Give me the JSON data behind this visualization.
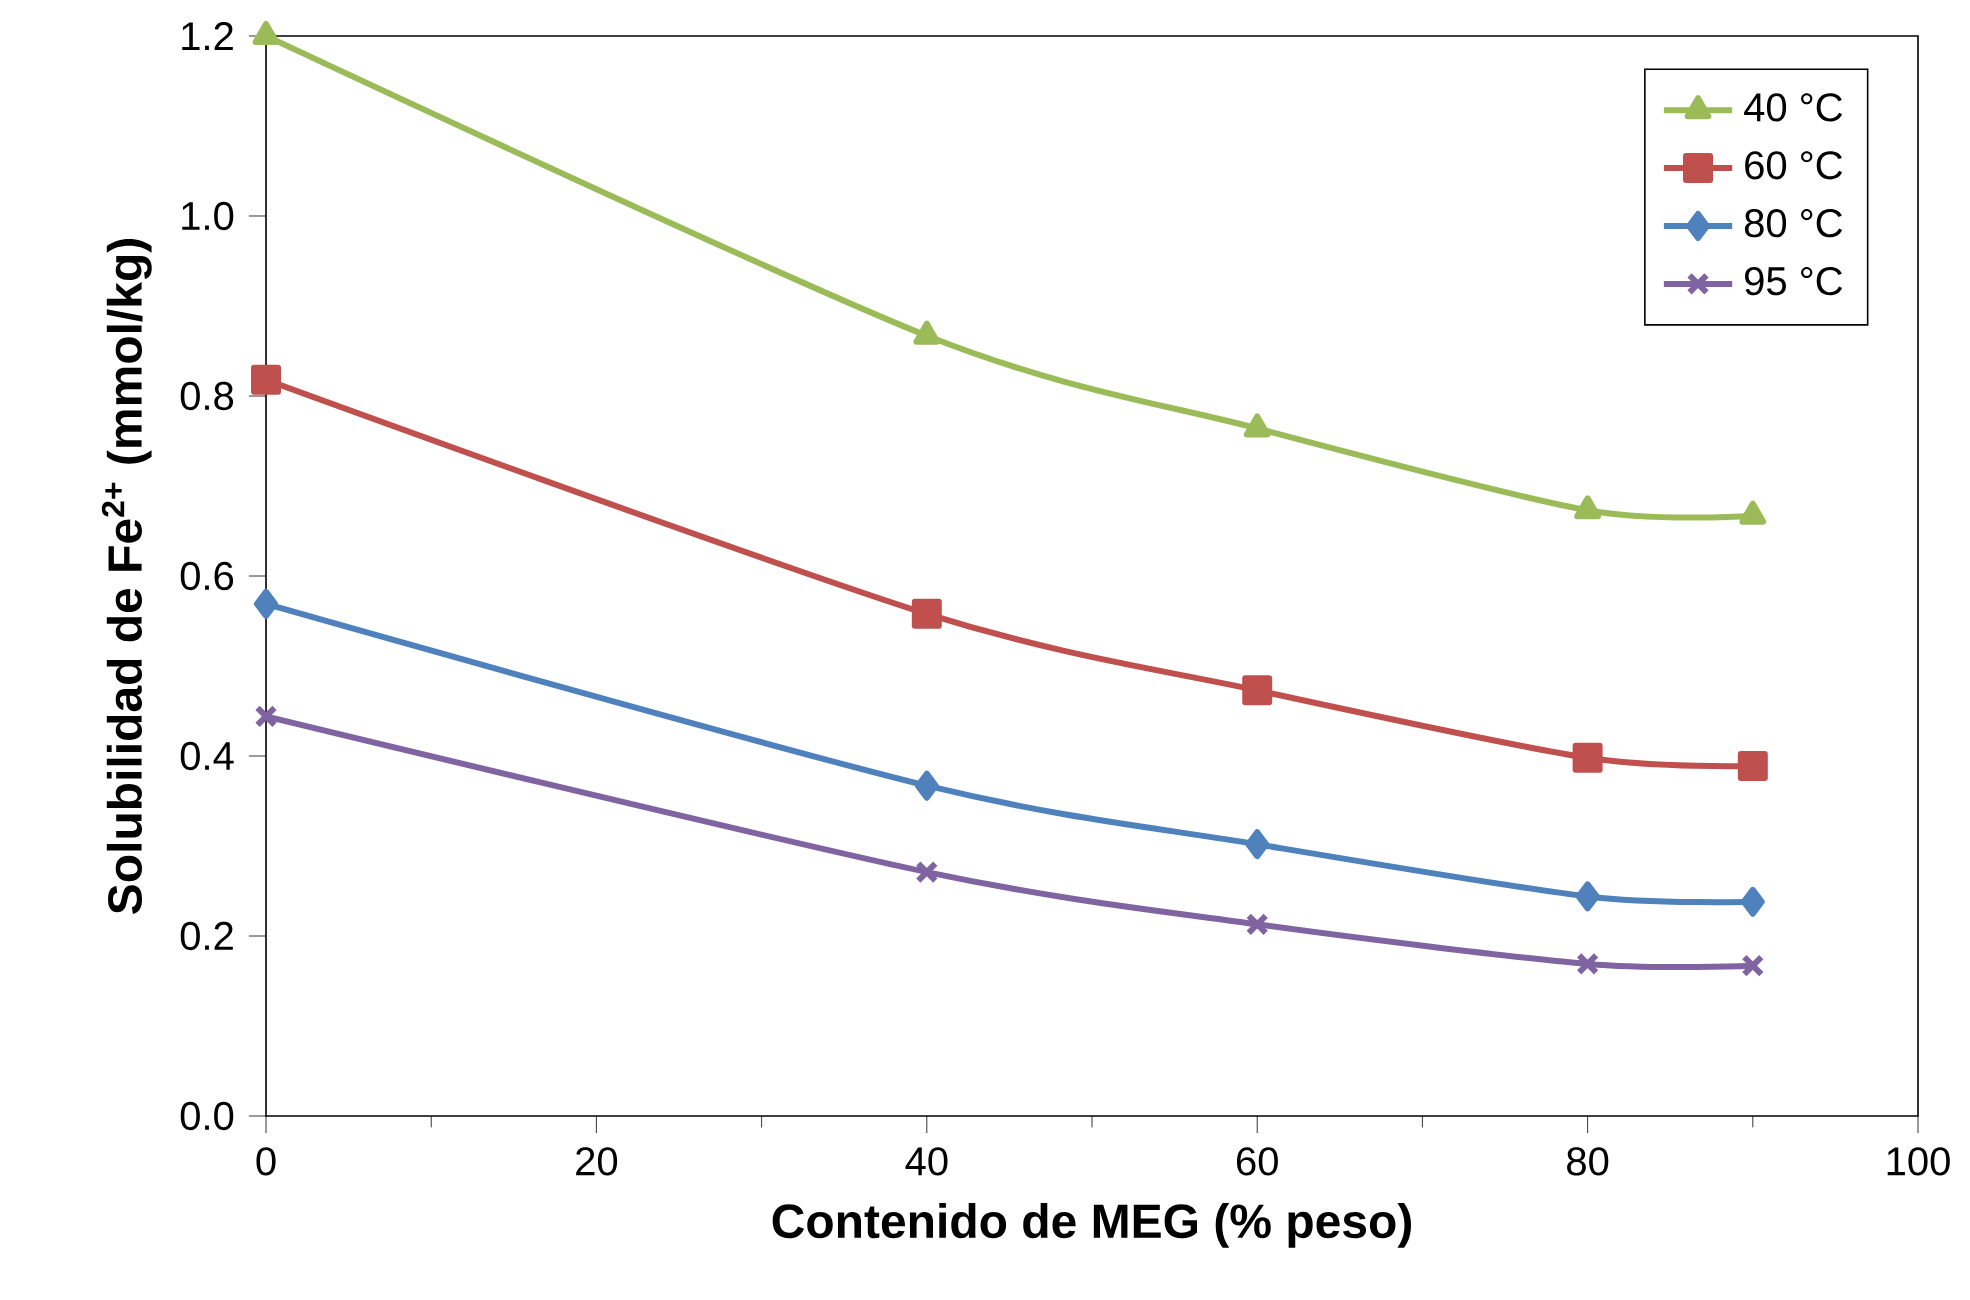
{
  "chart_data": {
    "type": "line",
    "xlabel": "Contenido de MEG (% peso)",
    "ylabel": "Solubilidad de Fe$^{2+}$ (mmol/kg)",
    "xlim": [
      0,
      100
    ],
    "xticks": [
      0,
      20,
      40,
      60,
      80,
      100
    ],
    "ylim": [
      0,
      1.2
    ],
    "yticks": [
      {
        "value": 0,
        "label": "0.0"
      },
      {
        "value": 0.2,
        "label": "0.2"
      },
      {
        "value": 0.4,
        "label": "0.4"
      },
      {
        "value": 0.6,
        "label": "0.6"
      },
      {
        "value": 0.8,
        "label": "0.8"
      },
      {
        "value": 1.0,
        "label": "1.0"
      },
      {
        "value": 1.2,
        "label": "1.2"
      }
    ],
    "legend": "top right",
    "grid": false,
    "series": [
      {
        "name": "40 °C",
        "color": "#9bbb59",
        "marker": "triangle",
        "x": [
          0,
          40,
          60,
          80,
          90
        ],
        "values": [
          1.2,
          0.867,
          0.764,
          0.673,
          0.667
        ]
      },
      {
        "name": "60 °C",
        "color": "#c0504d",
        "marker": "square",
        "x": [
          0,
          40,
          60,
          80,
          90
        ],
        "values": [
          0.818,
          0.558,
          0.473,
          0.398,
          0.389
        ]
      },
      {
        "name": "80 °C",
        "color": "#4f81bd",
        "marker": "diamond",
        "x": [
          0,
          40,
          60,
          80,
          90
        ],
        "values": [
          0.569,
          0.367,
          0.302,
          0.244,
          0.238
        ]
      },
      {
        "name": "95 °C",
        "color": "#8064a2",
        "marker": "cross",
        "x": [
          0,
          40,
          60,
          80,
          90
        ],
        "values": [
          0.444,
          0.271,
          0.213,
          0.169,
          0.167
        ]
      }
    ]
  }
}
